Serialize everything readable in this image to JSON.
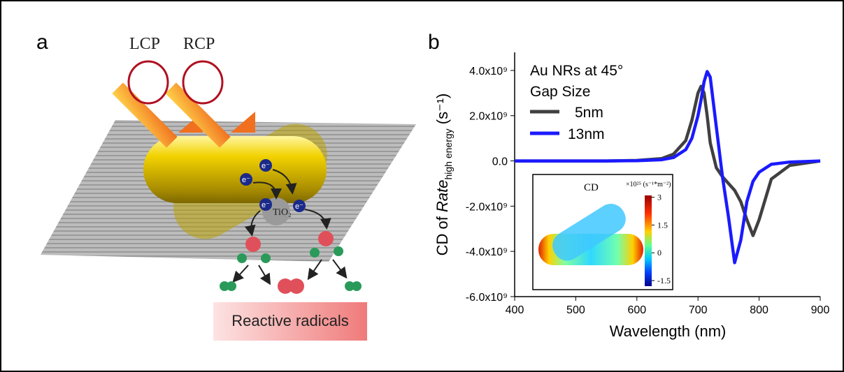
{
  "panel_a": {
    "label": "a",
    "lcp": "LCP",
    "rcp": "RCP",
    "electrons": [
      "e⁻",
      "e⁻",
      "e⁻",
      "e⁻"
    ],
    "catalyst": "TiO₂",
    "caption": "Reactive radicals"
  },
  "chart_data": {
    "type": "line",
    "panel_label": "b",
    "xlabel": "Wavelength (nm)",
    "ylabel": {
      "prefix": "CD of ",
      "rate": "Rate",
      "subscript": "high energy",
      "unit": " (s⁻¹)"
    },
    "legend_title": [
      "Au NRs at 45°",
      "Gap Size"
    ],
    "x": [
      400,
      450,
      500,
      550,
      600,
      640,
      660,
      680,
      690,
      700,
      705,
      710,
      715,
      720,
      730,
      740,
      750,
      760,
      770,
      780,
      790,
      800,
      820,
      850,
      900
    ],
    "series": [
      {
        "name": "5nm",
        "color": "#404040",
        "values": [
          0,
          0,
          0,
          0,
          20000000,
          100000000,
          300000000,
          900000000,
          1800000000,
          3000000000,
          3300000000,
          3000000000,
          2000000000,
          800000000,
          -300000000,
          -700000000,
          -1000000000,
          -1300000000,
          -1800000000,
          -2600000000,
          -3300000000,
          -2600000000,
          -800000000,
          -200000000,
          0
        ]
      },
      {
        "name": "13nm",
        "color": "#1a1aff",
        "values": [
          0,
          0,
          0,
          0,
          10000000,
          50000000,
          150000000,
          500000000,
          1000000000,
          2000000000,
          2700000000,
          3500000000,
          3950000000,
          3700000000,
          1500000000,
          -700000000,
          -2500000000,
          -4500000000,
          -3500000000,
          -1800000000,
          -900000000,
          -500000000,
          -150000000,
          -50000000,
          0
        ]
      }
    ],
    "xlim": [
      400,
      900
    ],
    "xticks": [
      400,
      500,
      600,
      700,
      800,
      900
    ],
    "ylim": [
      -6000000000,
      4800000000
    ],
    "yticks": [
      {
        "value": -6000000000,
        "label": "-6.0x10⁹"
      },
      {
        "value": -4000000000,
        "label": "-4.0x10⁹"
      },
      {
        "value": -2000000000,
        "label": "-2.0x10⁹"
      },
      {
        "value": 0,
        "label": "0.0"
      },
      {
        "value": 2000000000,
        "label": "2.0x10⁹"
      },
      {
        "value": 4000000000,
        "label": "4.0x10⁹"
      }
    ],
    "inset": {
      "title": "CD",
      "colorbar_label": "×10²⁵ (s⁻¹*m⁻²)",
      "clim": [
        -1.8,
        3.1
      ],
      "colorbar_ticks": [
        3,
        1.5,
        0,
        -1.5
      ]
    }
  }
}
